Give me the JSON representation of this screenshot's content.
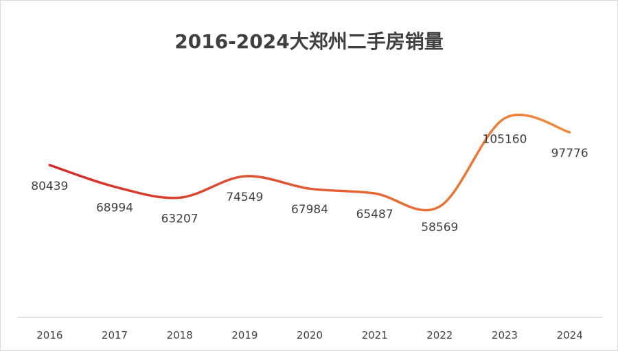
{
  "chart_data": {
    "type": "line",
    "title": "2016-2024大郑州二手房销量",
    "xlabel": "",
    "ylabel": "",
    "categories": [
      "2016",
      "2017",
      "2018",
      "2019",
      "2020",
      "2021",
      "2022",
      "2023",
      "2024"
    ],
    "series": [
      {
        "values": [
          80439,
          68994,
          63207,
          74549,
          67984,
          65487,
          58569,
          105160,
          97776
        ]
      }
    ],
    "data_labels": [
      "80439",
      "68994",
      "63207",
      "74549",
      "67984",
      "65487",
      "58569",
      "105160",
      "97776"
    ],
    "ylim": [
      0,
      160000
    ],
    "smooth": true,
    "grid": false,
    "legend": "none",
    "colors": {
      "line_start": "#d42a2a",
      "line_end": "#f08a3a",
      "axis": "#d9d9d9",
      "text": "#404040",
      "title": "#404040"
    }
  }
}
